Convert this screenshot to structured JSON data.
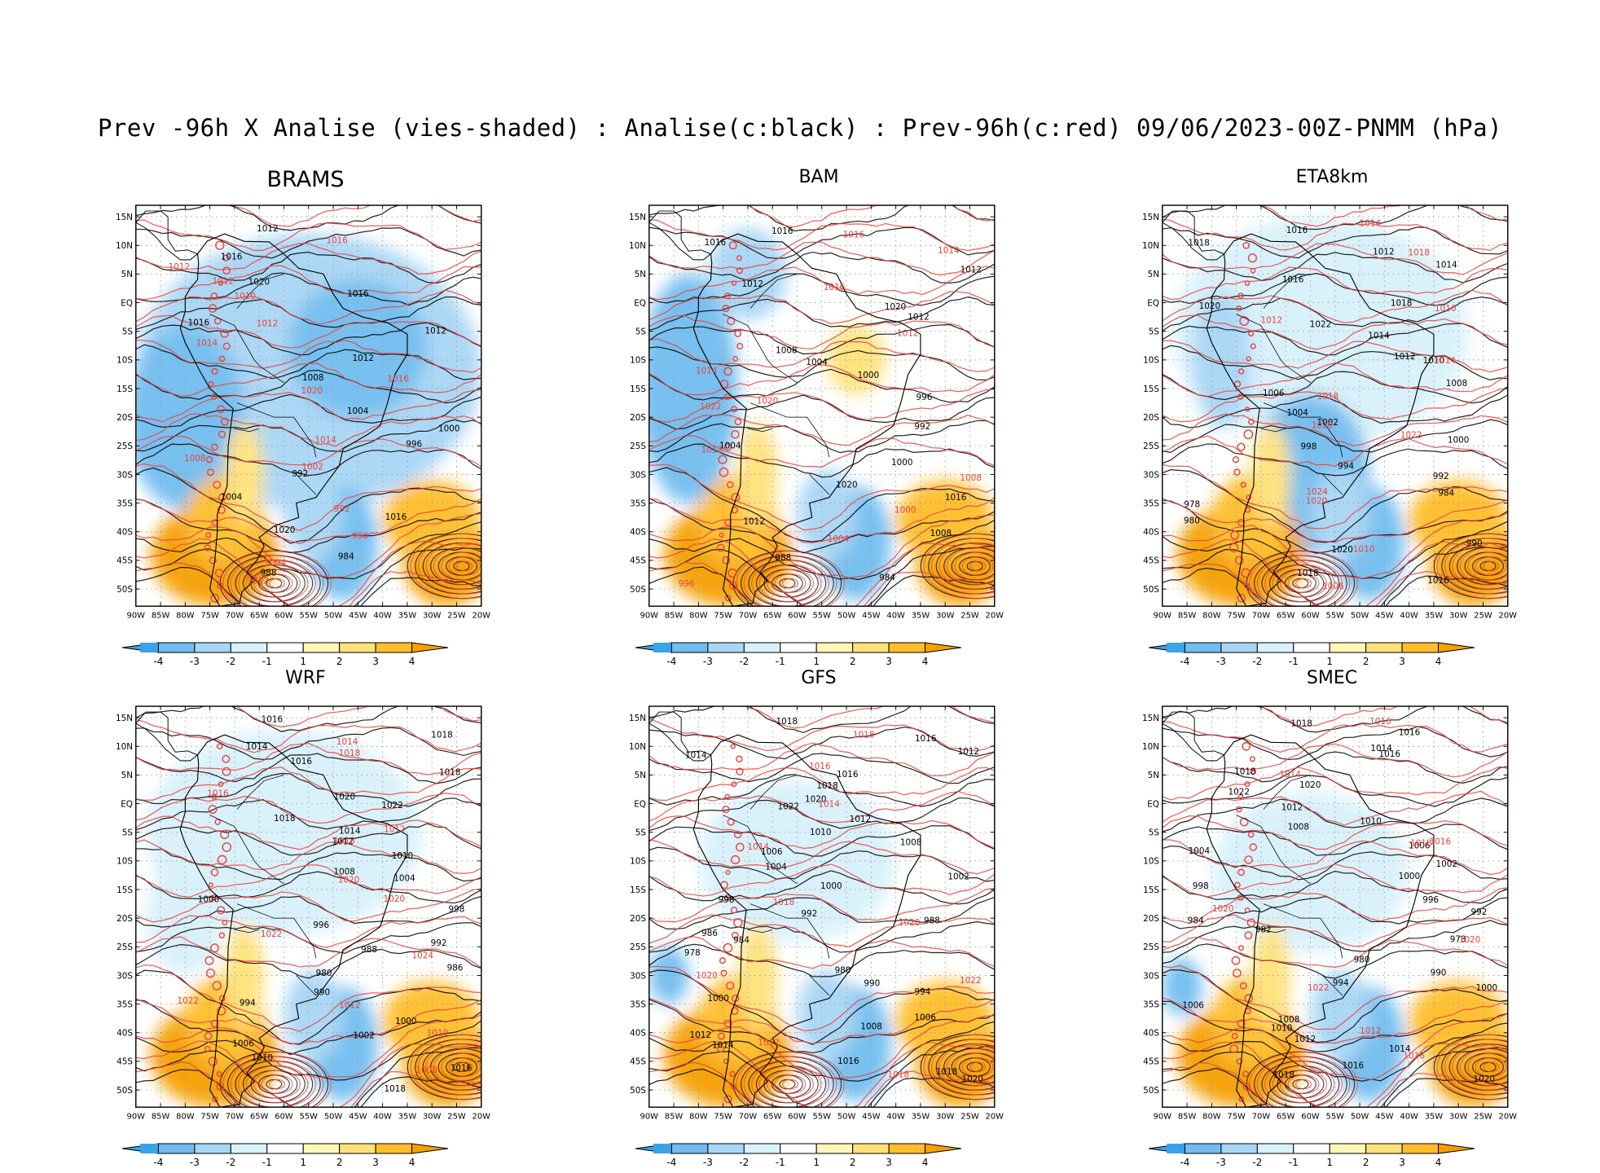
{
  "figure": {
    "title": "Prev -96h X Analise (vies-shaded) : Analise(c:black) : Prev-96h(c:red) 09/06/2023-00Z-PNMM (hPa)"
  },
  "colors": {
    "neg4": "#3aa2e8",
    "neg3": "#71bdf0",
    "neg2": "#a8d6f5",
    "neg1": "#d8f1fb",
    "zero": "#ffffff",
    "pos1": "#fff6b8",
    "pos2": "#ffe27a",
    "pos3": "#ffbe2a",
    "pos4": "#f5a000",
    "analysis_contour": "#000000",
    "forecast_contour": "#e8433c"
  },
  "axes": {
    "lat_labels": [
      "15N",
      "10N",
      "5N",
      "EQ",
      "5S",
      "10S",
      "15S",
      "20S",
      "25S",
      "30S",
      "35S",
      "40S",
      "45S",
      "50S"
    ],
    "lon_labels": [
      "90W",
      "85W",
      "80W",
      "75W",
      "70W",
      "65W",
      "60W",
      "55W",
      "50W",
      "45W",
      "40W",
      "35W",
      "30W",
      "25W",
      "20W"
    ]
  },
  "colorbar": {
    "labels": [
      "-4",
      "-3",
      "-2",
      "-1",
      "1",
      "2",
      "3",
      "4"
    ]
  },
  "panels": [
    {
      "name": "BRAMS",
      "analysis_labels": [
        "1012",
        "1016",
        "1020",
        "1016",
        "1016",
        "1012",
        "1012",
        "1008",
        "1004",
        "1000",
        "996",
        "992",
        "1004",
        "1016",
        "1020",
        "984",
        "988"
      ],
      "forecast_labels": [
        "1016",
        "1012",
        "1012",
        "1010",
        "1012",
        "1014",
        "1016",
        "1020",
        "1014",
        "1008",
        "1002",
        "992",
        "996",
        "1004",
        "1012"
      ]
    },
    {
      "name": "BAM",
      "analysis_labels": [
        "1016",
        "1016",
        "1012",
        "1012",
        "1020",
        "1012",
        "1008",
        "1004",
        "1000",
        "996",
        "992",
        "1004",
        "1000",
        "1020",
        "1016",
        "1012",
        "1008",
        "988",
        "984"
      ],
      "forecast_labels": [
        "1016",
        "1014",
        "1016",
        "1012",
        "1014",
        "1020",
        "1022",
        "1012",
        "1008",
        "1000",
        "1004",
        "996"
      ]
    },
    {
      "name": "ETA8km",
      "analysis_labels": [
        "1016",
        "1018",
        "1012",
        "1014",
        "1016",
        "1018",
        "1020",
        "1022",
        "1014",
        "1012",
        "1010",
        "1008",
        "1006",
        "1004",
        "1002",
        "1000",
        "998",
        "994",
        "992",
        "984",
        "978",
        "980",
        "990",
        "1020",
        "1018",
        "1016"
      ],
      "forecast_labels": [
        "1014",
        "1018",
        "1016",
        "1012",
        "1014",
        "1018",
        "1020",
        "1022",
        "1024",
        "1020",
        "1010",
        "1006"
      ]
    },
    {
      "name": "WRF",
      "analysis_labels": [
        "1016",
        "1018",
        "1014",
        "1016",
        "1018",
        "1020",
        "1022",
        "1018",
        "1014",
        "1012",
        "1010",
        "1008",
        "1004",
        "1000",
        "998",
        "996",
        "992",
        "988",
        "986",
        "980",
        "990",
        "994",
        "1000",
        "1002",
        "1006",
        "1010",
        "1016",
        "1018"
      ],
      "forecast_labels": [
        "1014",
        "1018",
        "1016",
        "1012",
        "1018",
        "1020",
        "1020",
        "1022",
        "1024",
        "1022",
        "1012",
        "1010",
        "1008"
      ]
    },
    {
      "name": "GFS",
      "analysis_labels": [
        "1018",
        "1016",
        "1012",
        "1014",
        "1016",
        "1018",
        "1020",
        "1022",
        "1012",
        "1010",
        "1008",
        "1006",
        "1004",
        "1002",
        "1000",
        "998",
        "992",
        "988",
        "986",
        "984",
        "978",
        "980",
        "990",
        "994",
        "1000",
        "1006",
        "1008",
        "1012",
        "1014",
        "1016",
        "1018",
        "1020"
      ],
      "forecast_labels": [
        "1018",
        "1016",
        "1014",
        "1014",
        "1018",
        "1020",
        "1020",
        "1022",
        "1012",
        "1018"
      ]
    },
    {
      "name": "SMEC",
      "analysis_labels": [
        "1018",
        "1016",
        "1014",
        "1016",
        "1018",
        "1020",
        "1022",
        "1012",
        "1010",
        "1008",
        "1006",
        "1004",
        "1002",
        "1000",
        "998",
        "996",
        "992",
        "984",
        "982",
        "978",
        "980",
        "990",
        "994",
        "1000",
        "1006",
        "1008",
        "1010",
        "1012",
        "1014",
        "1016",
        "1018",
        "1020"
      ],
      "forecast_labels": [
        "1016",
        "1014",
        "1016",
        "1018",
        "1020",
        "1020",
        "1022",
        "1012",
        "1016"
      ]
    }
  ]
}
